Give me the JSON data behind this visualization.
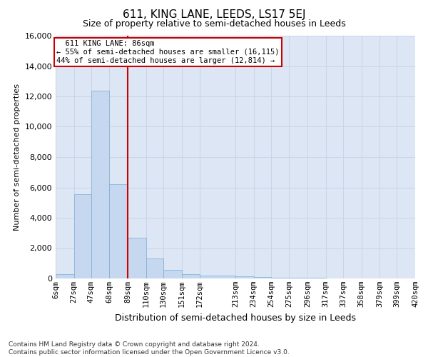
{
  "title": "611, KING LANE, LEEDS, LS17 5EJ",
  "subtitle": "Size of property relative to semi-detached houses in Leeds",
  "xlabel": "Distribution of semi-detached houses by size in Leeds",
  "ylabel": "Number of semi-detached properties",
  "annotation_line1": "  611 KING LANE: 86sqm  ",
  "annotation_line2": "← 55% of semi-detached houses are smaller (16,115)",
  "annotation_line3": "44% of semi-detached houses are larger (12,814) →",
  "bar_edges": [
    6,
    27,
    47,
    68,
    89,
    110,
    130,
    151,
    172,
    213,
    234,
    254,
    275,
    296,
    317,
    337,
    358,
    379,
    399,
    420
  ],
  "bar_heights": [
    300,
    5550,
    12400,
    6200,
    2700,
    1300,
    550,
    280,
    200,
    130,
    80,
    60,
    40,
    30,
    20,
    10,
    5,
    3,
    2,
    0
  ],
  "tick_labels": [
    "6sqm",
    "27sqm",
    "47sqm",
    "68sqm",
    "89sqm",
    "110sqm",
    "130sqm",
    "151sqm",
    "172sqm",
    "213sqm",
    "234sqm",
    "254sqm",
    "275sqm",
    "296sqm",
    "317sqm",
    "337sqm",
    "358sqm",
    "379sqm",
    "399sqm",
    "420sqm"
  ],
  "bar_color": "#c5d8f0",
  "bar_edge_color": "#7badd4",
  "vline_color": "#cc0000",
  "vline_x": 89,
  "ylim": [
    0,
    16000
  ],
  "yticks": [
    0,
    2000,
    4000,
    6000,
    8000,
    10000,
    12000,
    14000,
    16000
  ],
  "grid_color": "#c8d4e8",
  "bg_color": "#dce6f5",
  "fig_bg_color": "#ffffff",
  "footnote1": "Contains HM Land Registry data © Crown copyright and database right 2024.",
  "footnote2": "Contains public sector information licensed under the Open Government Licence v3.0."
}
